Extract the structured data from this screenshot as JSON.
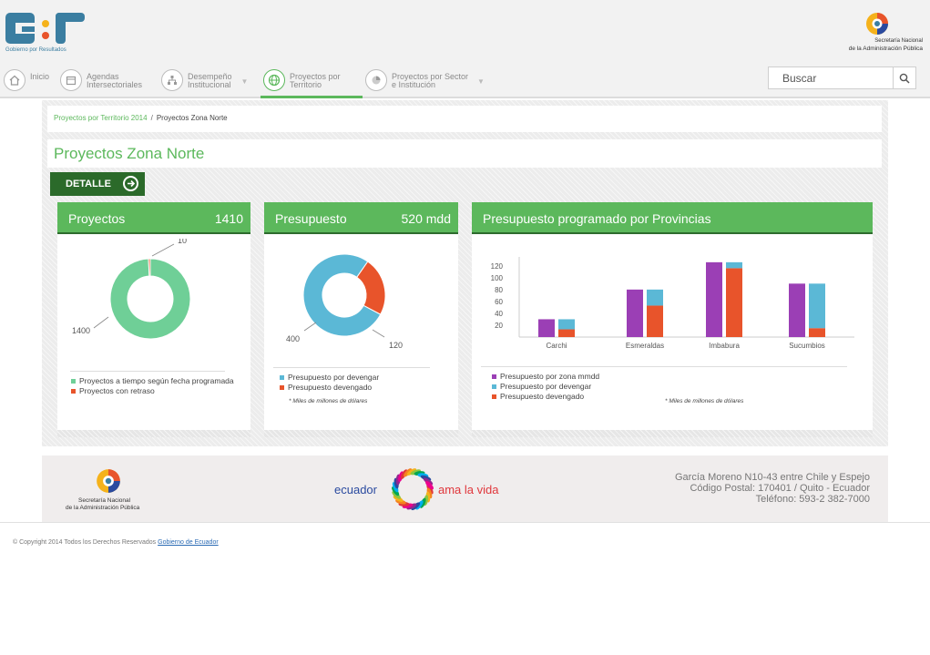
{
  "header": {
    "logo_text": "G:r",
    "logo_subtitle": "Gobierno por Resultados",
    "secretaria_line1": "Secretaría Nacional",
    "secretaria_line2": "de la Administración Pública"
  },
  "nav": {
    "items": [
      {
        "label": "Inicio",
        "icon": "home-icon"
      },
      {
        "label": "Agendas\nIntersectoriales",
        "icon": "calendar-icon"
      },
      {
        "label": "Desempeño\nInstitucional",
        "icon": "org-chart-icon"
      },
      {
        "label": "Proyectos por\nTerritorio",
        "icon": "globe-icon"
      },
      {
        "label": "Proyectos por Sector\ne Institución",
        "icon": "pie-chart-icon"
      }
    ],
    "active_index": 3,
    "search_placeholder": "Buscar"
  },
  "breadcrumb": {
    "link": "Proyectos por Territorio 2014",
    "separator": "/",
    "current": "Proyectos Zona Norte"
  },
  "page": {
    "title": "Proyectos Zona Norte",
    "detalle_label": "DETALLE"
  },
  "cards": {
    "proyectos": {
      "title": "Proyectos",
      "value": "1410",
      "legend": [
        "Proyectos a tiempo según fecha programada",
        "Proyectos con retraso"
      ]
    },
    "presupuesto": {
      "title": "Presupuesto",
      "value": "520 mdd",
      "legend": [
        "Presupuesto por devengar",
        "Presupuesto devengado"
      ],
      "note": "* Miles de millones de dólares"
    },
    "provincias": {
      "title": "Presupuesto programado por Provincias",
      "legend": [
        "Presupuesto por zona mmdd",
        "Presupuesto por devengar",
        "Presupuesto devengado"
      ],
      "note": "* Miles de millones de dólares"
    }
  },
  "chart_data": [
    {
      "type": "pie",
      "donut": true,
      "labels": [
        "Proyectos a tiempo según fecha programada",
        "Proyectos con retraso"
      ],
      "values": [
        1400,
        10
      ],
      "colors": [
        "#6fcf97",
        "#e8542b"
      ],
      "data_labels": [
        "1400",
        "10"
      ]
    },
    {
      "type": "pie",
      "donut": true,
      "labels": [
        "Presupuesto por devengar",
        "Presupuesto devengado"
      ],
      "values": [
        400,
        120
      ],
      "colors": [
        "#5bb8d6",
        "#e8542b"
      ],
      "data_labels": [
        "400",
        "120"
      ]
    },
    {
      "type": "bar",
      "categories": [
        "Carchi",
        "Esmeraldas",
        "Imbabura",
        "Sucumbios"
      ],
      "series": [
        {
          "name": "Presupuesto por zona mmdd",
          "values": [
            30,
            80,
            126,
            90
          ],
          "color": "#9b3fb5"
        },
        {
          "name": "Presupuesto por devengar",
          "values": [
            17,
            27,
            10,
            75
          ],
          "color": "#5bb8d6",
          "stack": "b"
        },
        {
          "name": "Presupuesto devengado",
          "values": [
            13,
            53,
            116,
            15
          ],
          "color": "#e8542b",
          "stack": "b"
        }
      ],
      "yticks": [
        20,
        40,
        60,
        80,
        100,
        120
      ],
      "ylim": [
        0,
        135
      ],
      "grid": false
    }
  ],
  "colors": {
    "accent_green": "#5cb85c",
    "dark_green": "#2b6a2a",
    "orange": "#e8542b",
    "blue": "#5bb8d6",
    "purple": "#9b3fb5",
    "light_green": "#6fcf97"
  },
  "footer": {
    "sec_line1": "Secretaría Nacional",
    "sec_line2": "de la Administración Pública",
    "ecuador": "ecuador",
    "amalavida": "ama la vida",
    "address_line1": "García Moreno N10-43 entre Chile y Espejo",
    "address_line2": "Código Postal: 170401 / Quito - Ecuador",
    "address_line3": "Teléfono: 593-2 382-7000",
    "copyright": "© Copyright 2014 Todos los Derechos Reservados",
    "copyright_link": "Gobierno de Ecuador"
  }
}
